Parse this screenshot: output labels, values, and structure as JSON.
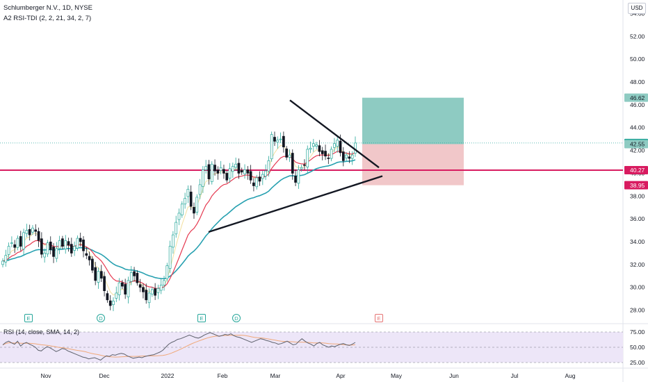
{
  "header": {
    "symbol_title": "Schlumberger N.V., 1D, NYSE",
    "indicator_title": "A2 RSI-TDI (2, 2, 21, 34, 2, 7)",
    "currency": "USD"
  },
  "rsi_panel": {
    "title": "RSI (14, close, SMA, 14, 2)",
    "levels": [
      "75.00",
      "50.00",
      "25.00"
    ]
  },
  "price_badges": {
    "target": "46.62",
    "current": "42.65",
    "entry": "42.55",
    "support": "40.27",
    "stop": "38.95"
  },
  "colors": {
    "up": "#26a69a",
    "down": "#131722",
    "support_line": "#d81b60",
    "profit_zone": "#8ecbc2",
    "loss_zone": "#f1c7c9",
    "ema_fast": "#e53950",
    "ema_slow": "#26a0b0",
    "ema_fastest": "#f3e0a0",
    "rsi_line": "#5d606b",
    "rsi_ma": "#f0a878"
  },
  "chart_data": {
    "type": "candlestick",
    "y_axis_ticks": [
      "28.00",
      "30.00",
      "32.00",
      "34.00",
      "36.00",
      "38.00",
      "40.00",
      "42.00",
      "44.00",
      "46.00",
      "48.00",
      "50.00",
      "52.00",
      "54.00"
    ],
    "ylim": [
      27,
      55
    ],
    "x_axis_labels": [
      "Nov",
      "Dec",
      "2022",
      "Feb",
      "Mar",
      "Apr",
      "May",
      "Jun",
      "Jul",
      "Aug"
    ],
    "event_markers": [
      "E",
      "D",
      "E",
      "D",
      "E"
    ],
    "support_level": 40.27,
    "trendline_upper": [
      {
        "x": 417,
        "y": 46.4
      },
      {
        "x": 545,
        "y": 40.5
      }
    ],
    "trendline_lower": [
      {
        "x": 300,
        "y": 34.85
      },
      {
        "x": 550,
        "y": 39.75
      }
    ],
    "position": {
      "entry": 42.55,
      "target": 46.62,
      "stop": 38.95
    },
    "candles_close": [
      32.3,
      32.8,
      33.6,
      33.9,
      33.5,
      34.3,
      33.6,
      34.8,
      35.0,
      34.6,
      35.2,
      34.9,
      34.1,
      32.9,
      33.0,
      33.9,
      33.3,
      32.7,
      33.4,
      34.1,
      33.6,
      34.1,
      33.7,
      33.0,
      33.6,
      34.3,
      34.0,
      33.2,
      32.8,
      32.4,
      31.5,
      30.6,
      31.4,
      30.8,
      29.7,
      28.9,
      28.4,
      28.8,
      29.5,
      30.4,
      30.1,
      29.4,
      30.6,
      31.3,
      31.0,
      30.4,
      30.0,
      29.6,
      28.9,
      29.5,
      29.8,
      29.3,
      29.9,
      30.2,
      30.6,
      31.9,
      33.6,
      34.6,
      35.7,
      36.5,
      37.3,
      37.8,
      38.6,
      37.1,
      36.5,
      37.9,
      39.0,
      40.3,
      40.6,
      39.5,
      40.8,
      40.2,
      40.0,
      40.5,
      40.0,
      39.4,
      40.4,
      40.6,
      40.8,
      40.0,
      40.1,
      40.3,
      40.0,
      39.4,
      38.9,
      39.6,
      39.3,
      39.9,
      40.2,
      41.1,
      43.4,
      42.8,
      42.9,
      43.0,
      42.3,
      41.4,
      41.6,
      40.0,
      39.2,
      40.3,
      40.5,
      40.7,
      42.1,
      42.2,
      42.6,
      42.5,
      41.9,
      41.7,
      41.5,
      41.3,
      42.1,
      42.6,
      42.9,
      41.8,
      41.1,
      41.6,
      41.3,
      41.6,
      42.65
    ],
    "rsi_values": [
      54,
      58,
      60,
      57,
      55,
      60,
      52,
      56,
      58,
      55,
      53,
      50,
      45,
      44,
      48,
      51,
      49,
      46,
      43,
      45,
      48,
      47,
      44,
      42,
      40,
      38,
      36,
      34,
      33,
      31,
      32,
      33,
      31,
      29,
      33,
      36,
      35,
      38,
      37,
      39,
      40,
      39,
      36,
      34,
      32,
      33,
      34,
      33,
      35,
      36,
      37,
      38,
      40,
      42,
      45,
      50,
      55,
      58,
      60,
      63,
      64,
      66,
      68,
      70,
      68,
      66,
      65,
      67,
      70,
      72,
      74,
      72,
      70,
      68,
      69,
      71,
      70,
      72,
      69,
      67,
      66,
      64,
      62,
      60,
      58,
      60,
      62,
      64,
      63,
      61,
      60,
      58,
      57,
      55,
      56,
      58,
      60,
      57,
      54,
      55,
      60,
      64,
      60,
      57,
      55,
      52,
      56,
      58,
      54,
      52,
      50,
      52,
      51,
      53,
      55,
      56,
      54,
      53,
      55,
      58
    ],
    "rsi_ylim": [
      0,
      100
    ]
  }
}
